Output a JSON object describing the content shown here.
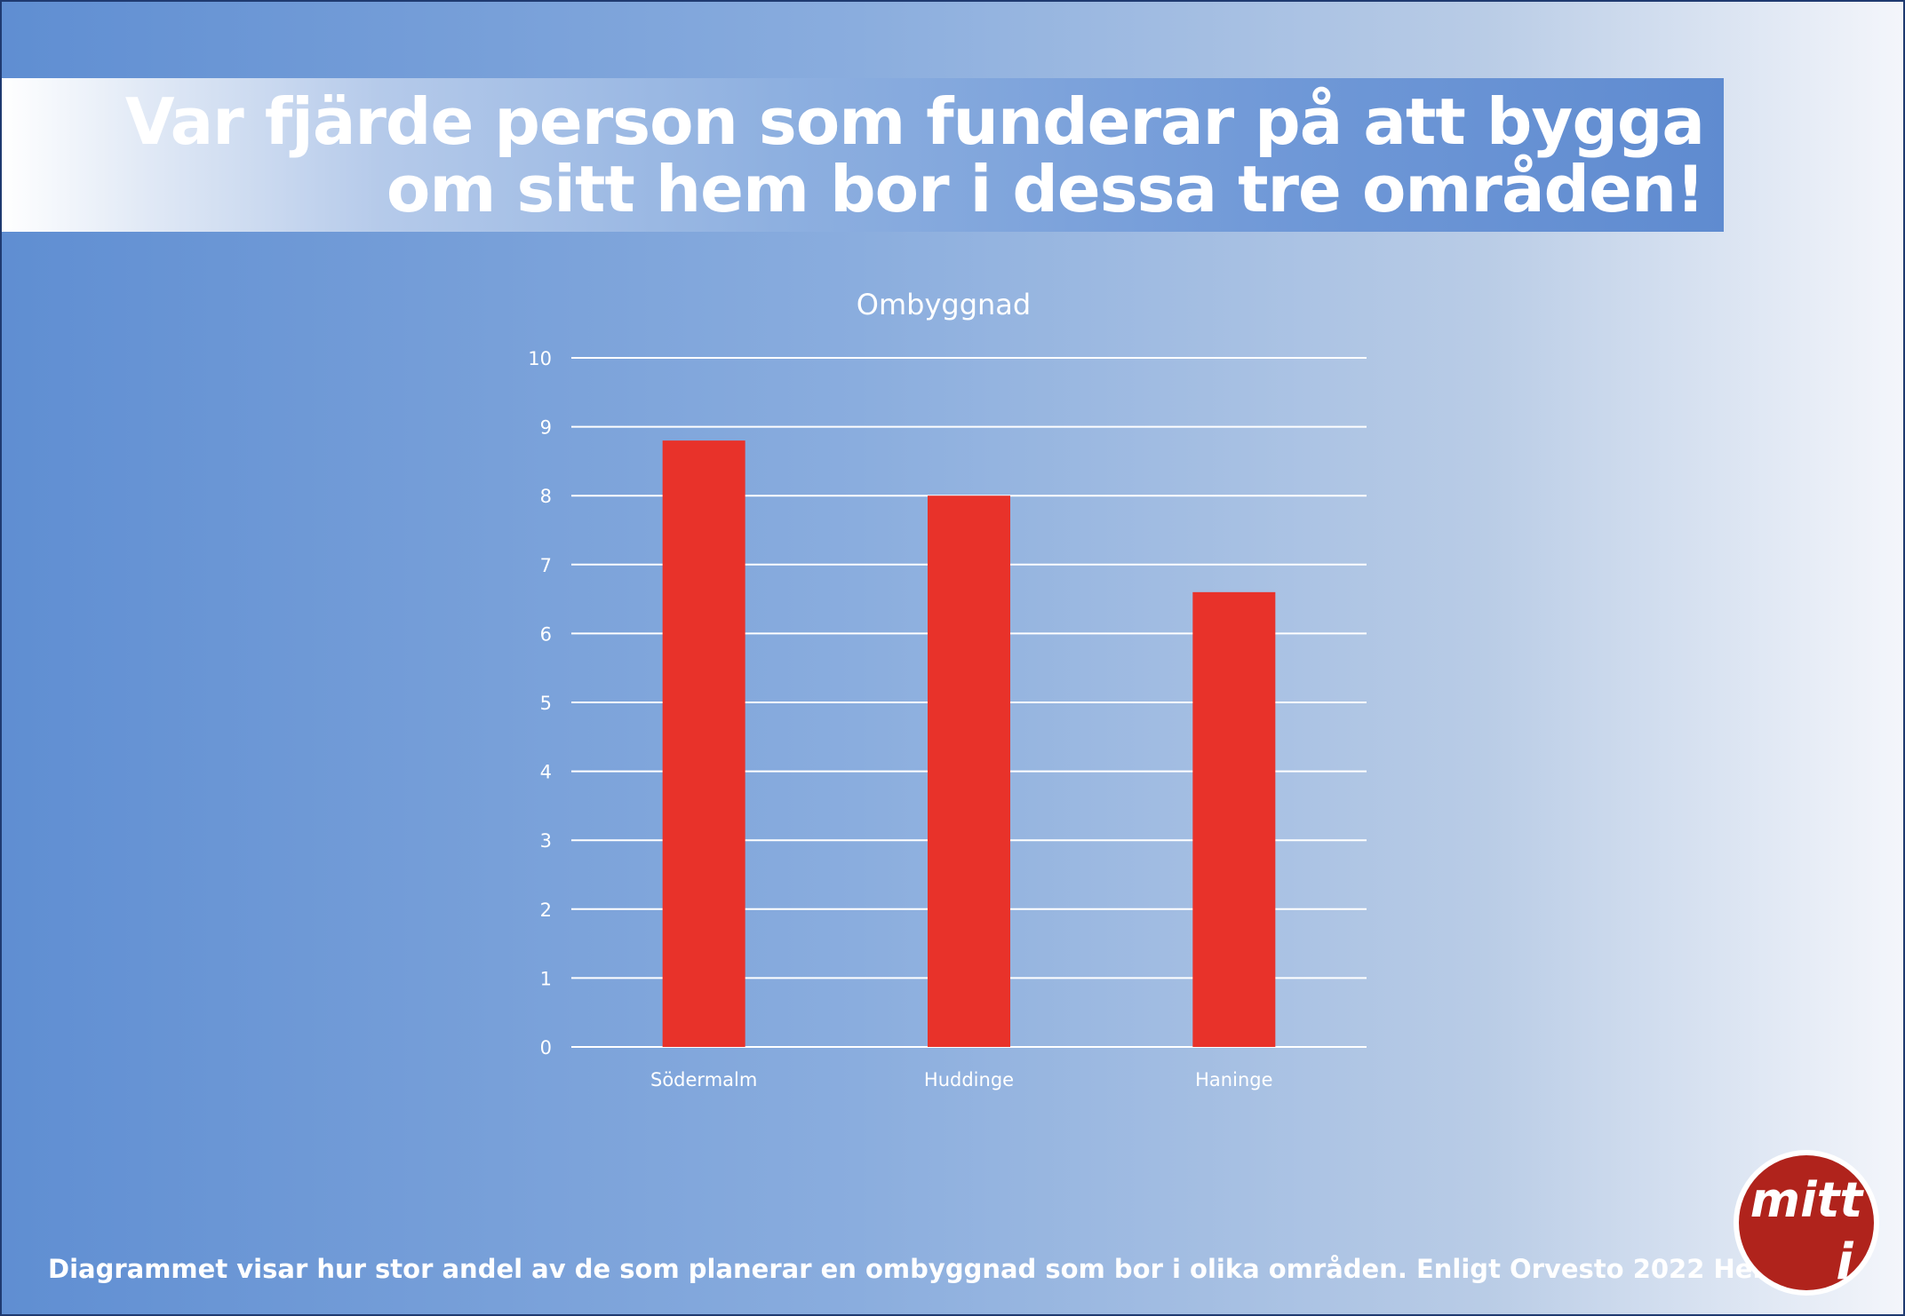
{
  "headline": {
    "line1": "Var fjärde person som funderar på att bygga",
    "line2": "om sitt hem bor i dessa tre områden!"
  },
  "chart_data": {
    "type": "bar",
    "title": "Ombyggnad",
    "categories": [
      "Södermalm",
      "Huddinge",
      "Haninge"
    ],
    "values": [
      8.8,
      8.0,
      6.6
    ],
    "ylim": [
      0,
      10
    ],
    "yticks": [
      0,
      1,
      2,
      3,
      4,
      5,
      6,
      7,
      8,
      9,
      10
    ],
    "grid": true,
    "bar_color": "#e8322a",
    "xlabel": "",
    "ylabel": ""
  },
  "footnote": "Diagrammet visar hur stor andel av de som planerar en ombyggnad som bor i olika områden. Enligt Orvesto 2022 Helår.",
  "logo": {
    "top": "mitt",
    "bottom": "i",
    "color": "#b0231c"
  }
}
